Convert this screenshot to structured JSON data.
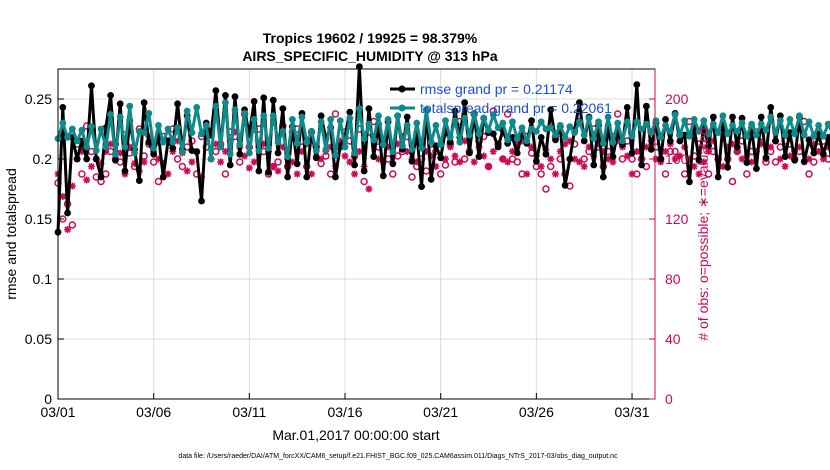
{
  "chart_data": {
    "type": "line",
    "title_line1": "Tropics 19602 / 19925 = 98.379%",
    "title_line2": "AIRS_SPECIFIC_HUMIDITY @ 313 hPa",
    "ylabel": "rmse and totalspread",
    "ylabel_right": "# of obs: o=possible; ∗=evaluated",
    "xlabel": "Mar.01,2017 00:00:00 start",
    "footnote": "data file: /Users/raeder/DAI/ATM_forcXX/CAM6_setup/f.e21.FHIST_BGC.f09_025.CAM6assim.011/Diags_NTrS_2017-03/obs_diag_output.nc",
    "xlim": [
      0,
      31.2
    ],
    "ylim": [
      0,
      0.275
    ],
    "ylim_right": [
      0,
      220
    ],
    "x_ticks": [
      0,
      5,
      10,
      15,
      20,
      25,
      30
    ],
    "x_tick_labels": [
      "03/01",
      "03/06",
      "03/11",
      "03/16",
      "03/21",
      "03/26",
      "03/31"
    ],
    "y_ticks": [
      0,
      0.05,
      0.1,
      0.15,
      0.2,
      0.25
    ],
    "y_tick_labels": [
      "0",
      "0.05",
      "0.1",
      "0.15",
      "0.2",
      "0.25"
    ],
    "y_right_ticks": [
      0,
      40,
      80,
      120,
      160,
      200
    ],
    "y_right_tick_labels": [
      "0",
      "40",
      "80",
      "120",
      "160",
      "200"
    ],
    "time_step_days": 0.25,
    "series": [
      {
        "name": "rmse grand pr = 0.21174",
        "color": "#000000",
        "values": [
          0.139,
          0.243,
          0.155,
          0.218,
          0.2,
          0.215,
          0.2,
          0.261,
          0.2,
          0.185,
          0.226,
          0.253,
          0.199,
          0.246,
          0.19,
          0.232,
          0.208,
          0.182,
          0.247,
          0.214,
          0.204,
          0.22,
          0.185,
          0.215,
          0.209,
          0.246,
          0.208,
          0.236,
          0.207,
          0.206,
          0.165,
          0.23,
          0.22,
          0.257,
          0.21,
          0.253,
          0.195,
          0.252,
          0.204,
          0.241,
          0.22,
          0.248,
          0.19,
          0.251,
          0.189,
          0.249,
          0.205,
          0.242,
          0.185,
          0.227,
          0.196,
          0.238,
          0.185,
          0.223,
          0.201,
          0.236,
          0.217,
          0.226,
          0.185,
          0.211,
          0.219,
          0.239,
          0.195,
          0.277,
          0.19,
          0.242,
          0.202,
          0.229,
          0.186,
          0.231,
          0.196,
          0.236,
          0.208,
          0.235,
          0.198,
          0.222,
          0.177,
          0.241,
          0.183,
          0.211,
          0.201,
          0.224,
          0.214,
          0.24,
          0.218,
          0.247,
          0.205,
          0.238,
          0.202,
          0.234,
          0.222,
          0.221,
          0.21,
          0.224,
          0.213,
          0.218,
          0.205,
          0.222,
          0.213,
          0.232,
          0.198,
          0.218,
          0.204,
          0.241,
          0.216,
          0.227,
          0.178,
          0.2,
          0.224,
          0.247,
          0.215,
          0.235,
          0.195,
          0.228,
          0.185,
          0.228,
          0.202,
          0.222,
          0.212,
          0.243,
          0.205,
          0.262,
          0.195,
          0.244,
          0.208,
          0.23,
          0.2,
          0.233,
          0.215,
          0.238,
          0.215,
          0.22,
          0.181,
          0.226,
          0.199,
          0.227,
          0.211,
          0.235,
          0.185,
          0.228,
          0.193,
          0.235,
          0.21,
          0.234,
          0.197,
          0.226,
          0.192,
          0.235,
          0.201,
          0.243,
          0.215,
          0.236,
          0.202,
          0.222,
          0.199,
          0.235,
          0.198,
          0.216,
          0.205,
          0.221,
          0.204,
          0.218,
          0.192,
          0.227,
          0.201,
          0.233,
          0.191,
          0.228,
          0.203,
          0.223,
          0.213,
          0.227,
          0.184,
          0.23,
          0.201,
          0.214,
          0.203,
          0.221,
          0.208,
          0.224,
          0.202,
          0.238,
          0.199,
          0.224,
          0.2,
          0.228,
          0.203,
          0.278,
          0.212,
          0.238,
          0.222,
          0.224,
          0.212,
          0.232,
          0.208,
          0.256,
          0.229,
          0.215,
          0.217,
          0.21,
          0.206,
          0.221,
          0.205,
          0.245,
          0.231,
          0.224,
          0.225,
          0.218,
          0.21,
          0.215,
          0.212,
          0.22,
          0.209,
          0.22,
          0.215,
          0.22,
          0.214,
          0.22,
          0.216,
          0.222,
          0.215,
          0.226,
          0.228,
          0.21,
          0.208,
          0.212,
          0.214,
          0.215,
          0.256,
          0.226
        ]
      },
      {
        "name": "totalspread grand pr = 0.22061",
        "color": "#0f8a8a",
        "values": [
          0.217,
          0.23,
          0.218,
          0.225,
          0.215,
          0.224,
          0.21,
          0.227,
          0.207,
          0.225,
          0.21,
          0.237,
          0.204,
          0.235,
          0.21,
          0.244,
          0.205,
          0.223,
          0.222,
          0.238,
          0.209,
          0.228,
          0.214,
          0.225,
          0.214,
          0.226,
          0.206,
          0.24,
          0.222,
          0.243,
          0.221,
          0.228,
          0.2,
          0.244,
          0.21,
          0.247,
          0.204,
          0.241,
          0.212,
          0.238,
          0.205,
          0.233,
          0.207,
          0.236,
          0.209,
          0.236,
          0.214,
          0.223,
          0.202,
          0.233,
          0.213,
          0.235,
          0.214,
          0.223,
          0.207,
          0.231,
          0.208,
          0.233,
          0.203,
          0.232,
          0.21,
          0.234,
          0.205,
          0.242,
          0.217,
          0.229,
          0.216,
          0.236,
          0.212,
          0.233,
          0.206,
          0.236,
          0.211,
          0.228,
          0.208,
          0.23,
          0.209,
          0.241,
          0.214,
          0.228,
          0.212,
          0.232,
          0.218,
          0.232,
          0.214,
          0.234,
          0.22,
          0.238,
          0.221,
          0.234,
          0.224,
          0.237,
          0.226,
          0.23,
          0.216,
          0.231,
          0.217,
          0.226,
          0.215,
          0.225,
          0.223,
          0.231,
          0.225,
          0.226,
          0.22,
          0.228,
          0.218,
          0.227,
          0.222,
          0.231,
          0.22,
          0.234,
          0.217,
          0.231,
          0.213,
          0.235,
          0.214,
          0.23,
          0.215,
          0.231,
          0.219,
          0.231,
          0.225,
          0.229,
          0.222,
          0.232,
          0.218,
          0.228,
          0.223,
          0.237,
          0.22,
          0.232,
          0.219,
          0.233,
          0.223,
          0.232,
          0.221,
          0.229,
          0.222,
          0.236,
          0.221,
          0.228,
          0.223,
          0.23,
          0.219,
          0.229,
          0.22,
          0.229,
          0.224,
          0.235,
          0.222,
          0.232,
          0.22,
          0.233,
          0.221,
          0.236,
          0.22,
          0.231,
          0.219,
          0.228,
          0.219,
          0.229,
          0.221,
          0.225,
          0.218,
          0.226,
          0.217,
          0.228,
          0.216,
          0.228,
          0.219,
          0.231,
          0.221,
          0.228,
          0.214,
          0.229,
          0.218,
          0.228,
          0.216,
          0.226,
          0.214,
          0.227,
          0.218,
          0.229,
          0.219,
          0.228,
          0.219,
          0.231,
          0.216,
          0.231,
          0.223,
          0.235,
          0.22,
          0.232,
          0.224,
          0.235,
          0.224,
          0.233,
          0.22,
          0.229,
          0.221,
          0.231,
          0.222,
          0.234,
          0.223,
          0.232,
          0.22,
          0.232,
          0.218,
          0.229,
          0.219,
          0.231,
          0.221,
          0.23,
          0.216,
          0.231,
          0.219,
          0.228,
          0.22,
          0.229,
          0.217,
          0.228,
          0.216,
          0.227,
          0.216,
          0.228
        ]
      }
    ],
    "obs_possible": {
      "name": "o=possible",
      "color": "#cc0a55",
      "values": [
        144,
        120,
        130,
        116,
        170,
        150,
        182,
        165,
        148,
        145,
        150,
        165,
        170,
        158,
        176,
        164,
        155,
        180,
        162,
        170,
        158,
        145,
        175,
        172,
        180,
        160,
        155,
        168,
        172,
        150,
        175,
        168,
        176,
        165,
        170,
        150,
        178,
        175,
        158,
        190,
        168,
        180,
        180,
        165,
        150,
        155,
        158,
        182,
        155,
        178,
        180,
        168,
        155,
        178,
        168,
        157,
        162,
        150,
        190,
        168,
        178,
        172,
        162,
        180,
        145,
        178,
        185,
        168,
        170,
        160,
        150,
        162,
        165,
        175,
        148,
        155,
        160,
        152,
        170,
        165,
        150,
        156,
        170,
        158,
        185,
        160,
        165,
        190,
        172,
        175,
        155,
        192,
        170,
        160,
        190,
        160,
        158,
        150,
        175,
        164,
        155,
        150,
        140,
        155,
        175,
        160,
        150,
        142,
        170,
        185,
        160,
        165,
        180,
        168,
        155,
        165,
        175,
        190,
        160,
        172,
        160,
        150,
        160,
        155,
        178,
        168,
        160,
        150,
        165,
        165,
        176,
        150,
        185,
        162,
        170,
        170,
        150,
        165,
        160,
        178,
        160,
        145,
        165,
        172,
        150,
        165,
        178,
        175,
        158,
        165,
        158,
        168,
        172,
        170,
        160,
        165,
        185,
        150,
        158,
        168,
        172,
        160,
        168,
        145,
        165,
        175,
        168,
        170,
        160,
        165,
        172,
        158,
        180,
        160,
        158,
        172,
        165,
        165,
        170,
        166,
        180,
        150,
        162,
        172,
        168,
        140,
        150,
        185,
        165,
        175,
        158,
        162,
        170,
        155,
        178,
        165,
        168,
        150,
        160,
        180,
        175,
        178,
        160,
        165,
        172,
        168,
        175,
        160,
        165,
        178,
        158,
        170,
        165,
        175,
        170,
        165,
        170,
        160,
        168,
        165,
        172,
        168,
        178,
        160,
        168,
        180,
        165,
        160,
        172,
        170,
        0,
        185
      ]
    },
    "obs_evaluated": {
      "name": "∗=evaluated",
      "color": "#cc0a55",
      "values": [
        150,
        135,
        113,
        142,
        160,
        165,
        146,
        155,
        160,
        157,
        165,
        170,
        161,
        164,
        150,
        168,
        157,
        152,
        158,
        175,
        165,
        160,
        157,
        150,
        165,
        172,
        164,
        152,
        158,
        165,
        148,
        175,
        160,
        170,
        158,
        165,
        172,
        178,
        168,
        162,
        154,
        158,
        168,
        170,
        165,
        155,
        152,
        168,
        160,
        158,
        150,
        165,
        170,
        150,
        162,
        160,
        165,
        168,
        155,
        172,
        162,
        158,
        150,
        165,
        155,
        140,
        175,
        160,
        158,
        168,
        162,
        170,
        175,
        165,
        160,
        158,
        168,
        165,
        162,
        155,
        170,
        160,
        168,
        162,
        158,
        172,
        165,
        158,
        168,
        162,
        155,
        165,
        170,
        160,
        158,
        165,
        170,
        172,
        150,
        168,
        162,
        155,
        166,
        160,
        150,
        165,
        170,
        172,
        160,
        158,
        155,
        168,
        162,
        170,
        165,
        160,
        158,
        172,
        168,
        162,
        150,
        165,
        160,
        168,
        172,
        160,
        158,
        165,
        170,
        160,
        162,
        168,
        160,
        155,
        150,
        158,
        165,
        172,
        160,
        155,
        168,
        170,
        165,
        160,
        162,
        158,
        165,
        170,
        160,
        168,
        172,
        160,
        155,
        162,
        165,
        168,
        158,
        160,
        170,
        165,
        160,
        168,
        162,
        155,
        160,
        170,
        162,
        165,
        168,
        160,
        158,
        165,
        162,
        170,
        165,
        160,
        158,
        168,
        162,
        160,
        165,
        170,
        162,
        158,
        165,
        170,
        160,
        162,
        168,
        165,
        158,
        160,
        165,
        170,
        168,
        162,
        160,
        158,
        165,
        168,
        162,
        155,
        160,
        165,
        170,
        162,
        158,
        165,
        168,
        160,
        158,
        162,
        165,
        168,
        160,
        155,
        158,
        162,
        160,
        158,
        165,
        158,
        162,
        160,
        155,
        158,
        160,
        162,
        158,
        160,
        0,
        160
      ]
    }
  }
}
